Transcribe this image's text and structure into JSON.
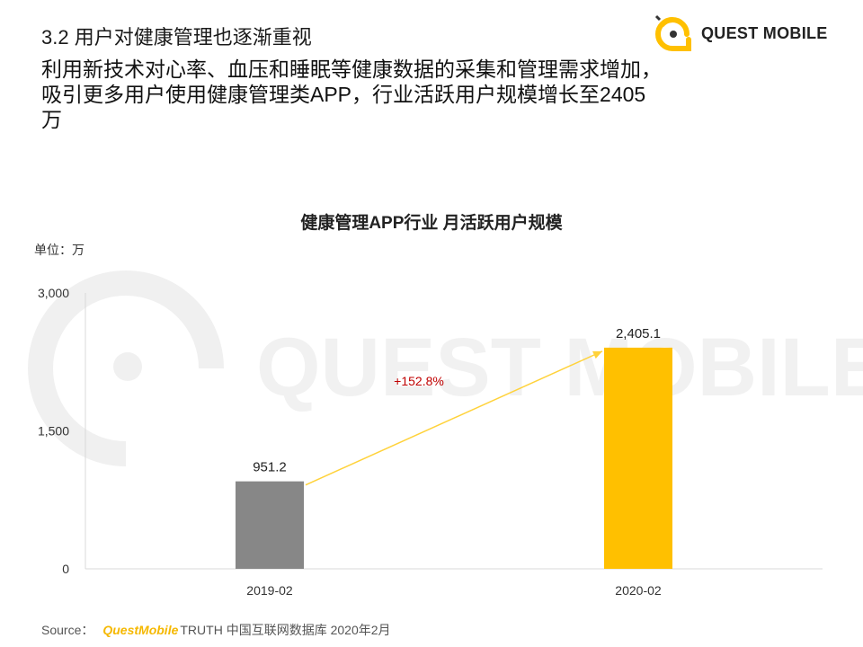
{
  "header": {
    "section_title": "3.2 用户对健康管理也逐渐重视",
    "headline": "利用新技术对心率、血压和睡眠等健康数据的采集和管理需求增加，吸引更多用户使用健康管理类APP，行业活跃用户规模增长至2405万"
  },
  "logo": {
    "text": "QUEST MOBILE"
  },
  "watermark": {
    "text": "QUEST MOBILE"
  },
  "source": {
    "prefix": "Source：",
    "brand": "QuestMobile",
    "rest": "TRUTH 中国互联网数据库 2020年2月"
  },
  "colors": {
    "bar_2019": "#878787",
    "bar_2020": "#ffc000",
    "arrow": "#ffd23a",
    "growth": "#c00000"
  },
  "chart_data": {
    "type": "bar",
    "title": "健康管理APP行业 月活跃用户规模",
    "unit_label": "单位：万",
    "categories": [
      "2019-02",
      "2020-02"
    ],
    "values": [
      951.2,
      2405.1
    ],
    "value_labels": [
      "951.2",
      "2,405.1"
    ],
    "ylim": [
      0,
      3000
    ],
    "yticks": [
      0,
      1500,
      3000
    ],
    "ytick_labels": [
      "0",
      "1,500",
      "3,000"
    ],
    "annotation": {
      "text": "+152.8%",
      "from": "2019-02",
      "to": "2020-02"
    },
    "grid": false,
    "legend": "none"
  }
}
